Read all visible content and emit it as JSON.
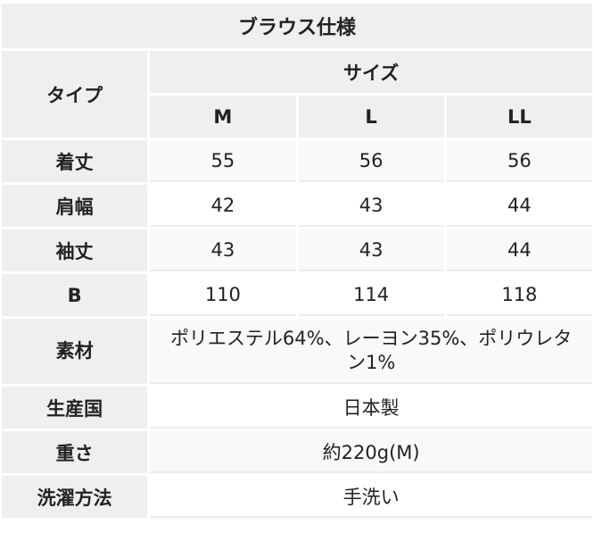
{
  "title": "ブラウス仕様",
  "type_label": "タイプ",
  "size_label": "サイズ",
  "sizes": [
    "M",
    "L",
    "LL"
  ],
  "rows": [
    {
      "label": "着丈",
      "values": [
        "55",
        "56",
        "56"
      ]
    },
    {
      "label": "肩幅",
      "values": [
        "42",
        "43",
        "44"
      ]
    },
    {
      "label": "袖丈",
      "values": [
        "43",
        "43",
        "44"
      ]
    },
    {
      "label": "B",
      "values": [
        "110",
        "114",
        "118"
      ]
    }
  ],
  "spans": [
    {
      "label": "素材",
      "value": "ポリエステル64%、レーヨン35%、ポリウレタン1%"
    },
    {
      "label": "生産国",
      "value": "日本製"
    },
    {
      "label": "重さ",
      "value": "約220g(M)"
    },
    {
      "label": "洗濯方法",
      "value": "手洗い"
    }
  ]
}
